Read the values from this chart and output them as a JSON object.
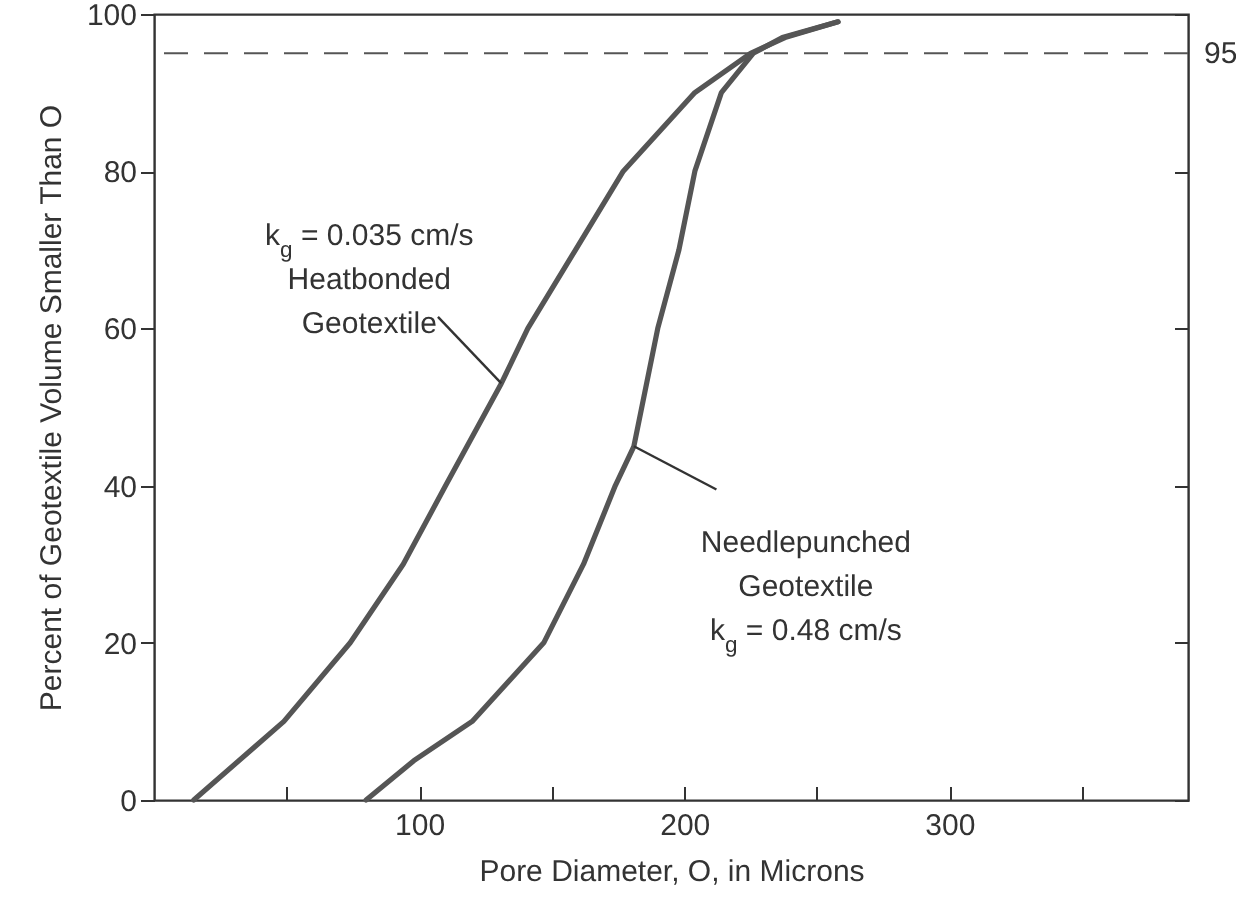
{
  "chart_data": {
    "type": "line",
    "xlabel": "Pore Diameter, O, in Microns",
    "ylabel": "Percent of Geotextile Volume Smaller Than O",
    "xlim": [
      0,
      390
    ],
    "xticks": [
      {
        "value": 50,
        "label": null
      },
      100,
      {
        "value": 150,
        "label": null
      },
      200,
      {
        "value": 250,
        "label": null
      },
      300,
      {
        "value": 350,
        "label": null
      }
    ],
    "ylim": [
      0,
      100
    ],
    "yticks": [
      0,
      20,
      40,
      60,
      80,
      100
    ],
    "series": [
      {
        "color": "#555555",
        "x": [
          15,
          49,
          74,
          94,
          110,
          131,
          141,
          159,
          177,
          204,
          225,
          238,
          258
        ],
        "values": [
          0,
          10,
          20,
          30,
          40,
          53,
          60,
          70,
          80,
          90,
          95,
          97,
          99
        ]
      },
      {
        "color": "#555555",
        "x": [
          80,
          98,
          120,
          147,
          162,
          174,
          181,
          190,
          198,
          204,
          214,
          226,
          237,
          258
        ],
        "values": [
          0,
          5,
          10,
          20,
          30,
          40,
          45,
          60,
          70,
          80,
          90,
          95,
          97,
          99
        ]
      }
    ],
    "ref_lines": [
      {
        "axis": "y",
        "value": 95,
        "label": "95",
        "line_style": "dashed",
        "color": "#555555"
      }
    ],
    "annotations": [
      {
        "text": "k$_{g}$ = 0.035 cm/s\nHeatbonded\nGeotextile",
        "x": 131,
        "y": 53
      },
      {
        "text": "Needlepunched\nGeotextile\nk$_{g}$ = 0.48 cm/s",
        "x": 181,
        "y": 45
      }
    ],
    "grid": false,
    "marker": "none",
    "line_style": "solid"
  }
}
